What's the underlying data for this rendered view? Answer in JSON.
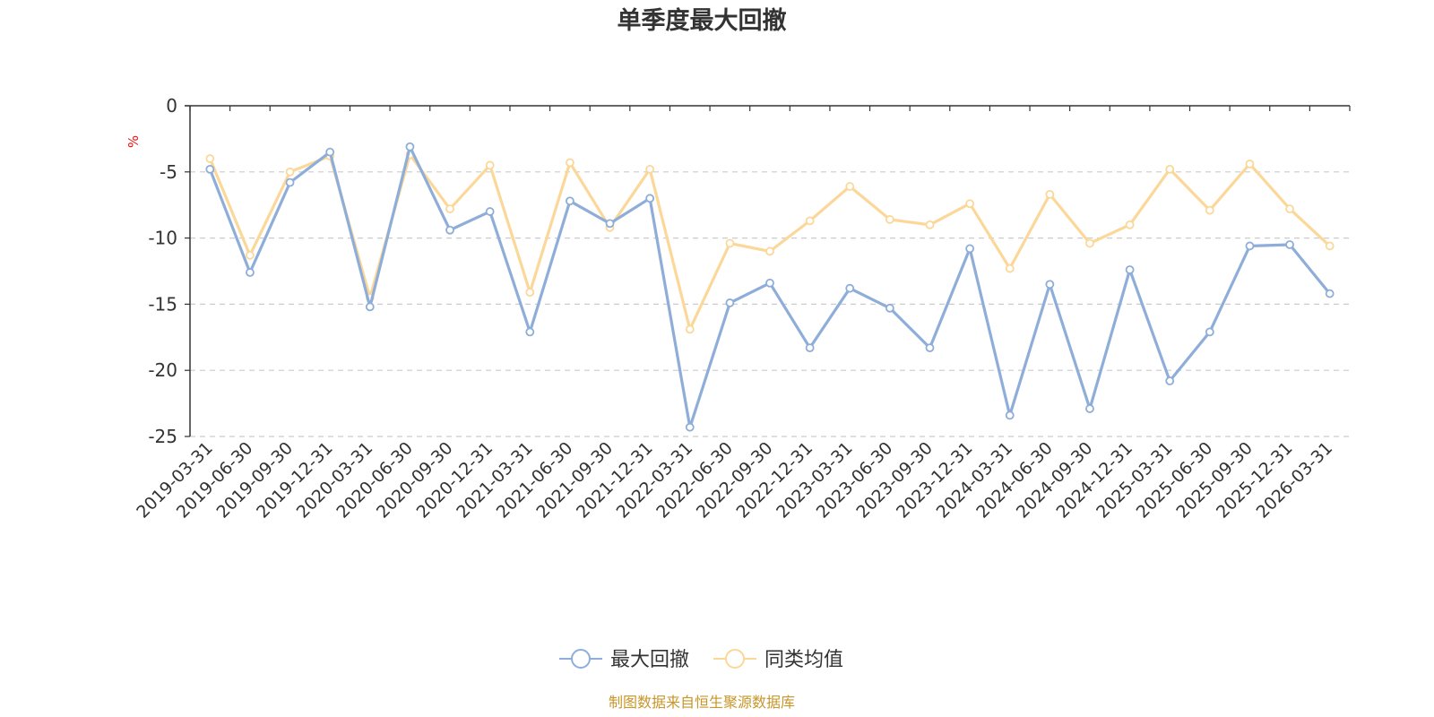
{
  "chart_data": {
    "type": "line",
    "title": "单季度最大回撤",
    "y_unit": "%",
    "ylim": [
      -25,
      0
    ],
    "yticks": [
      0,
      -5,
      -10,
      -15,
      -20,
      -25
    ],
    "grid": true,
    "legend_position": "bottom-center",
    "categories": [
      "2019-03-31",
      "2019-06-30",
      "2019-09-30",
      "2019-12-31",
      "2020-03-31",
      "2020-06-30",
      "2020-09-30",
      "2020-12-31",
      "2021-03-31",
      "2021-06-30",
      "2021-09-30",
      "2021-12-31",
      "2022-03-31",
      "2022-06-30",
      "2022-09-30",
      "2022-12-31",
      "2023-03-31",
      "2023-06-30",
      "2023-09-30",
      "2023-12-31",
      "2024-03-31",
      "2024-06-30",
      "2024-09-30",
      "2024-12-31",
      "2025-03-31",
      "2025-06-30",
      "2025-09-30",
      "2025-12-31",
      "2026-03-31"
    ],
    "series": [
      {
        "name": "最大回撤",
        "color": "#8eaed9",
        "values": [
          -4.8,
          -12.6,
          -5.8,
          -3.5,
          -15.2,
          -3.1,
          -9.4,
          -8.0,
          -17.1,
          -7.2,
          -8.9,
          -7.0,
          -24.3,
          -14.9,
          -13.4,
          -18.3,
          -13.8,
          -15.3,
          -18.3,
          -10.8,
          -23.4,
          -13.5,
          -22.9,
          -12.4,
          -20.8,
          -17.1,
          -10.6,
          -10.5,
          -14.2
        ]
      },
      {
        "name": "同类均值",
        "color": "#fbd899",
        "values": [
          -4.0,
          -11.3,
          -5.0,
          -3.8,
          -14.5,
          -3.7,
          -7.8,
          -4.5,
          -14.1,
          -4.3,
          -9.2,
          -4.8,
          -16.9,
          -10.4,
          -11.0,
          -8.7,
          -6.1,
          -8.6,
          -9.0,
          -7.4,
          -12.3,
          -6.7,
          -10.4,
          -9.0,
          -4.8,
          -7.9,
          -4.4,
          -7.8,
          -10.6
        ]
      }
    ]
  },
  "footer": {
    "source_text": "制图数据来自恒生聚源数据库"
  }
}
